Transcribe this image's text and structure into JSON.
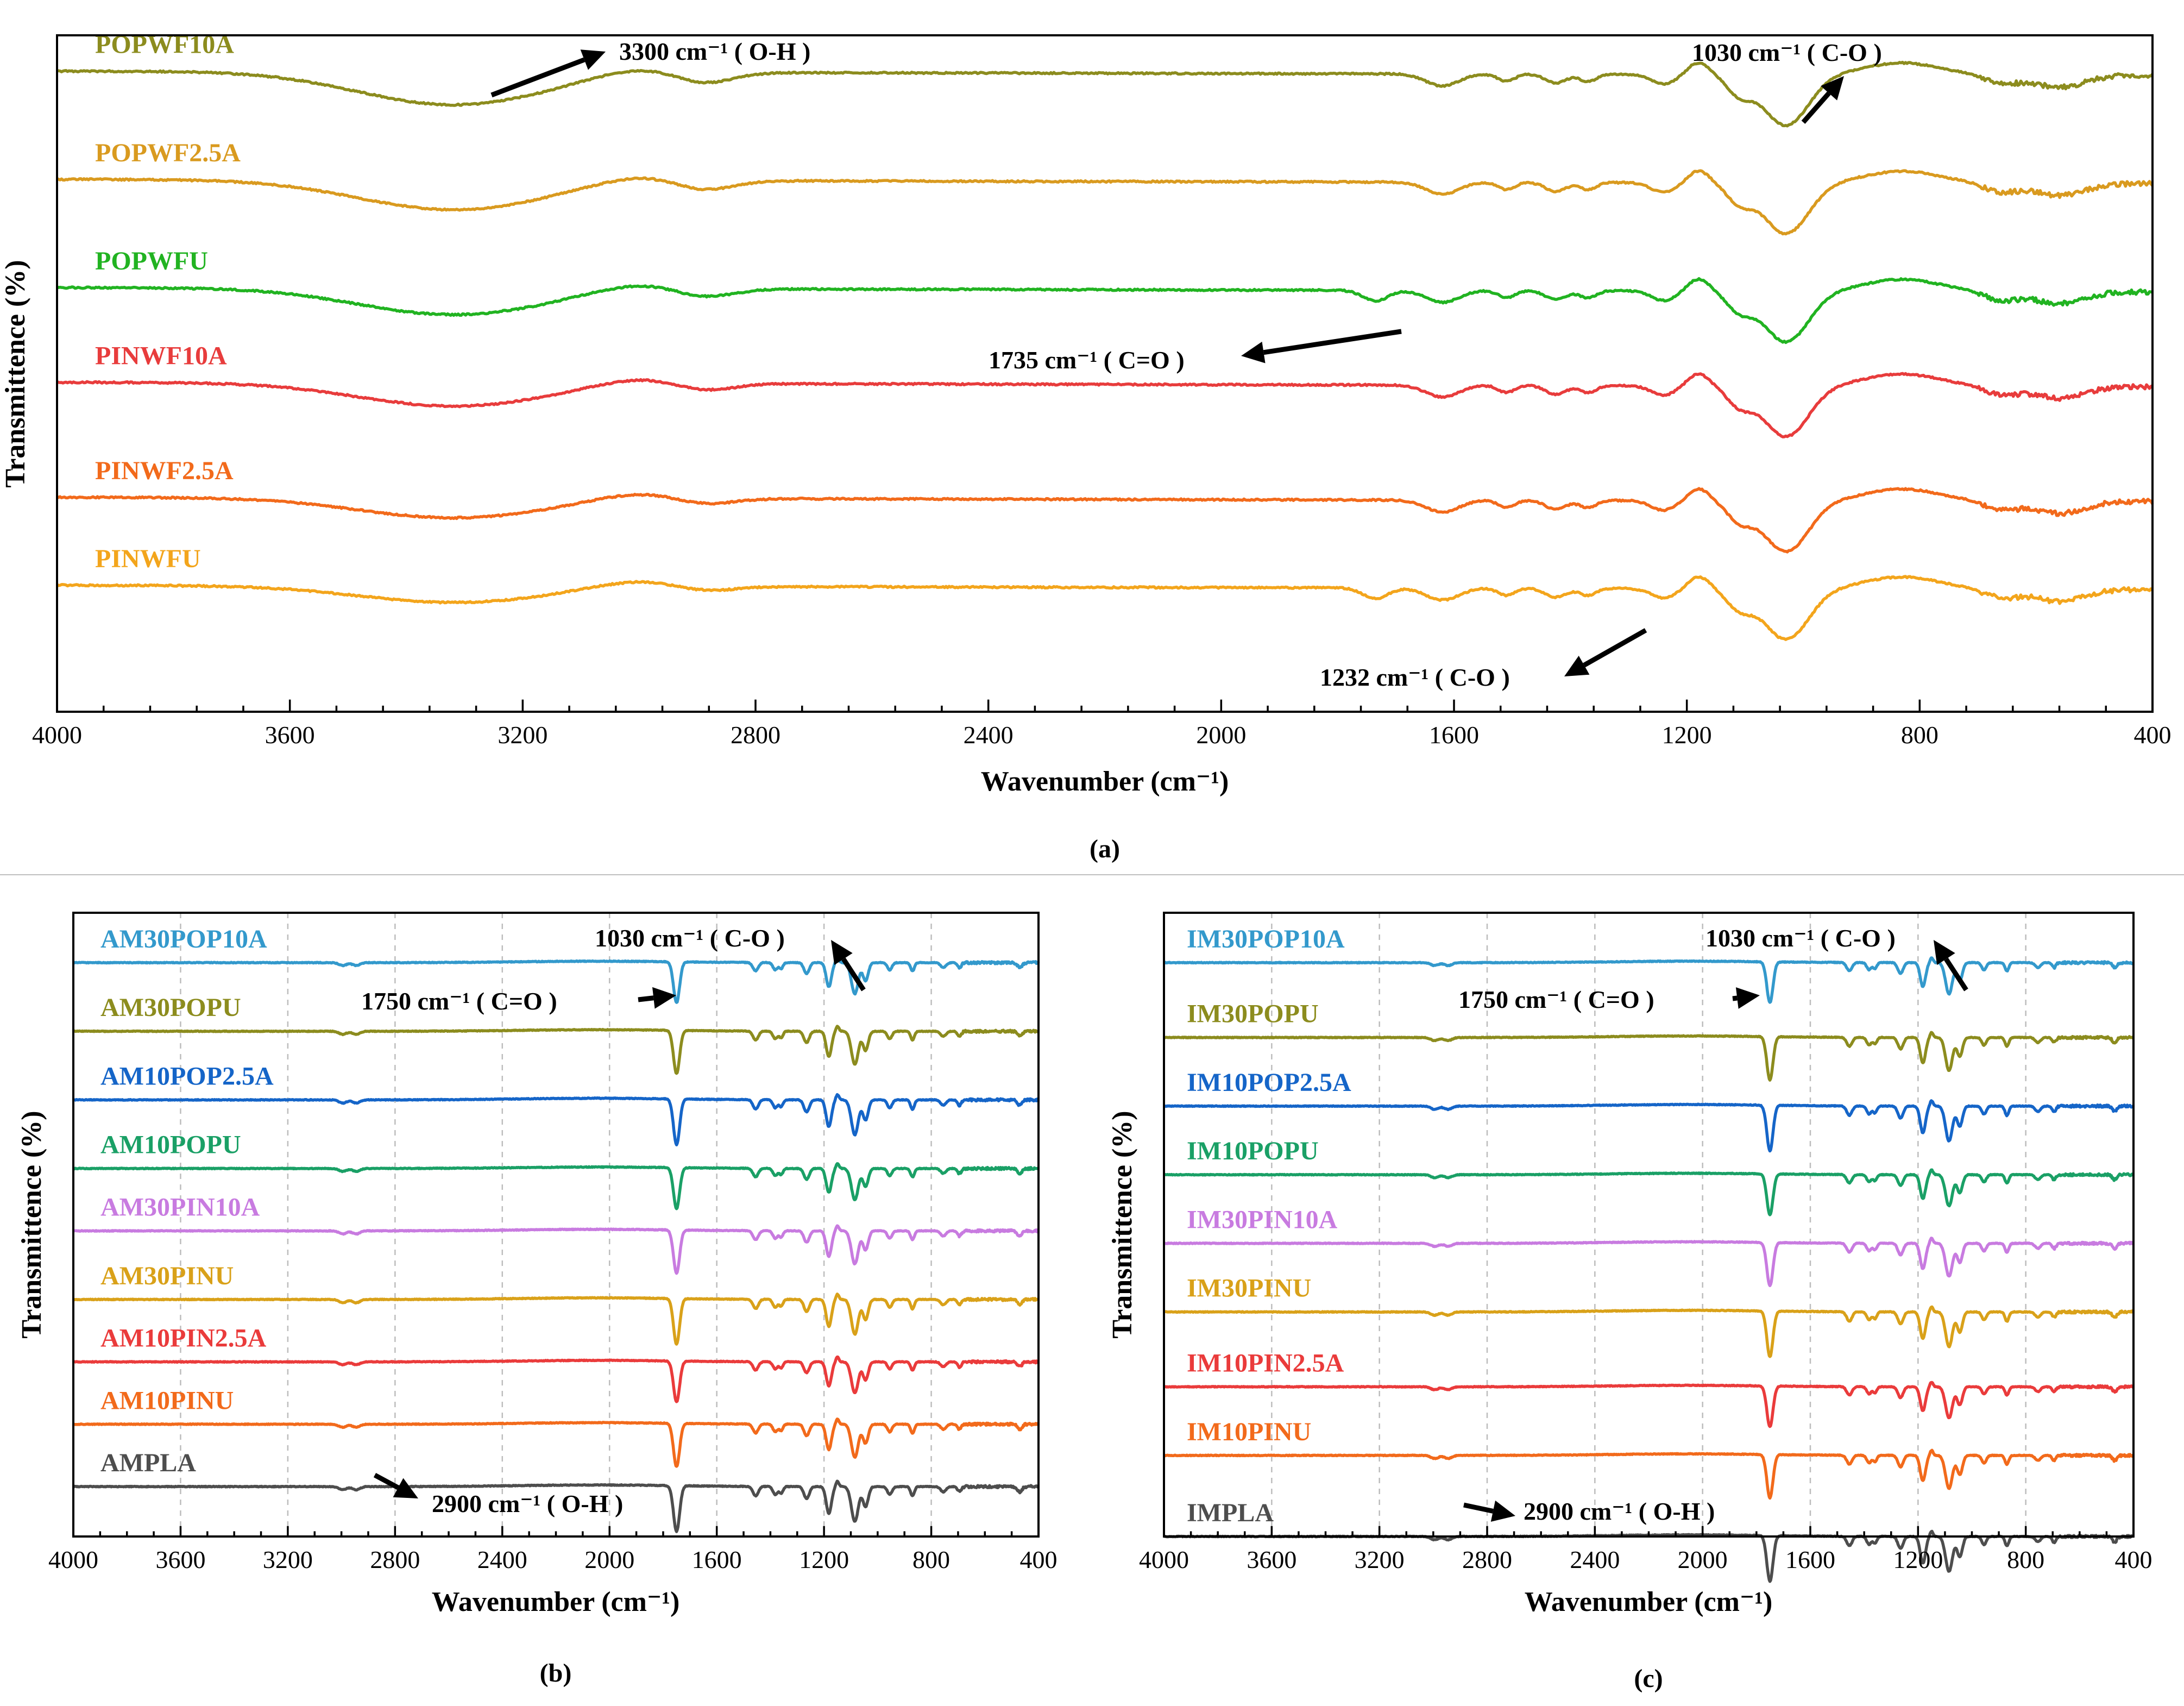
{
  "figure": {
    "panel_labels": [
      "(a)",
      "(b)",
      "(c)"
    ]
  },
  "chart_data": [
    {
      "type": "line",
      "panel": "(a)",
      "xlabel": "Wavenumber (cm⁻¹)",
      "ylabel": "Transmittence (%)",
      "xlim": [
        4000,
        400
      ],
      "x_ticks": [
        "4000",
        "3600",
        "3200",
        "2800",
        "2400",
        "2000",
        "1600",
        "1200",
        "800",
        "400"
      ],
      "grid": false,
      "series": [
        {
          "name": "POPWF10A",
          "color": "#8c8c1e",
          "baseline": 0.06
        },
        {
          "name": "POPWF2.5A",
          "color": "#d99a1f",
          "baseline": 0.22
        },
        {
          "name": "POPWFU",
          "color": "#21b321",
          "baseline": 0.38
        },
        {
          "name": "PINWF10A",
          "color": "#e83c3c",
          "baseline": 0.52
        },
        {
          "name": "PINWF2.5A",
          "color": "#f26a1b",
          "baseline": 0.69
        },
        {
          "name": "PINWFU",
          "color": "#f3a51c",
          "baseline": 0.82
        }
      ],
      "annotations": [
        {
          "text": "3300 cm⁻¹ ( O-H )"
        },
        {
          "text": "1030 cm⁻¹ ( C-O )"
        },
        {
          "text": "1735 cm⁻¹ ( C=O )"
        },
        {
          "text": "1232 cm⁻¹ ( C-O )"
        }
      ]
    },
    {
      "type": "line",
      "panel": "(b)",
      "xlabel": "Wavenumber (cm⁻¹)",
      "ylabel": "Transmittence (%)",
      "xlim": [
        4000,
        400
      ],
      "x_ticks": [
        "4000",
        "3600",
        "3200",
        "2800",
        "2400",
        "2000",
        "1600",
        "1200",
        "800",
        "400"
      ],
      "grid": true,
      "series": [
        {
          "name": "AM30POP10A",
          "color": "#3399cc",
          "baseline": 0.08
        },
        {
          "name": "AM30POPU",
          "color": "#8c8c1e",
          "baseline": 0.19
        },
        {
          "name": "AM10POP2.5A",
          "color": "#1565c8",
          "baseline": 0.3
        },
        {
          "name": "AM10POPU",
          "color": "#1aa066",
          "baseline": 0.41
        },
        {
          "name": "AM30PIN10A",
          "color": "#c87be0",
          "baseline": 0.51
        },
        {
          "name": "AM30PINU",
          "color": "#d9a119",
          "baseline": 0.62
        },
        {
          "name": "AM10PIN2.5A",
          "color": "#ea3b3b",
          "baseline": 0.72
        },
        {
          "name": "AM10PINU",
          "color": "#f26a1b",
          "baseline": 0.82
        },
        {
          "name": "AMPLA",
          "color": "#4d4d4d",
          "baseline": 0.92
        }
      ],
      "annotations": [
        {
          "text": "1030 cm⁻¹ ( C-O )"
        },
        {
          "text": "1750 cm⁻¹ ( C=O )"
        },
        {
          "text": "2900 cm⁻¹ ( O-H )"
        }
      ]
    },
    {
      "type": "line",
      "panel": "(c)",
      "xlabel": "Wavenumber (cm⁻¹)",
      "ylabel": "Transmittence (%)",
      "xlim": [
        4000,
        400
      ],
      "x_ticks": [
        "4000",
        "3600",
        "3200",
        "2800",
        "2400",
        "2000",
        "1600",
        "1200",
        "800",
        "400"
      ],
      "grid": true,
      "series": [
        {
          "name": "IM30POP10A",
          "color": "#3399cc",
          "baseline": 0.08
        },
        {
          "name": "IM30POPU",
          "color": "#8c8c1e",
          "baseline": 0.2
        },
        {
          "name": "IM10POP2.5A",
          "color": "#1565c8",
          "baseline": 0.31
        },
        {
          "name": "IM10POPU",
          "color": "#1aa066",
          "baseline": 0.42
        },
        {
          "name": "IM30PIN10A",
          "color": "#c87be0",
          "baseline": 0.53
        },
        {
          "name": "IM30PINU",
          "color": "#d9a119",
          "baseline": 0.64
        },
        {
          "name": "IM10PIN2.5A",
          "color": "#ea3b3b",
          "baseline": 0.76
        },
        {
          "name": "IM10PINU",
          "color": "#f26a1b",
          "baseline": 0.87
        },
        {
          "name": "IMPLA",
          "color": "#4d4d4d",
          "baseline": 1.0
        }
      ],
      "annotations": [
        {
          "text": "1030 cm⁻¹ ( C-O )"
        },
        {
          "text": "1750 cm⁻¹ ( C=O )"
        },
        {
          "text": "2900 cm⁻¹ ( O-H )"
        }
      ]
    }
  ]
}
